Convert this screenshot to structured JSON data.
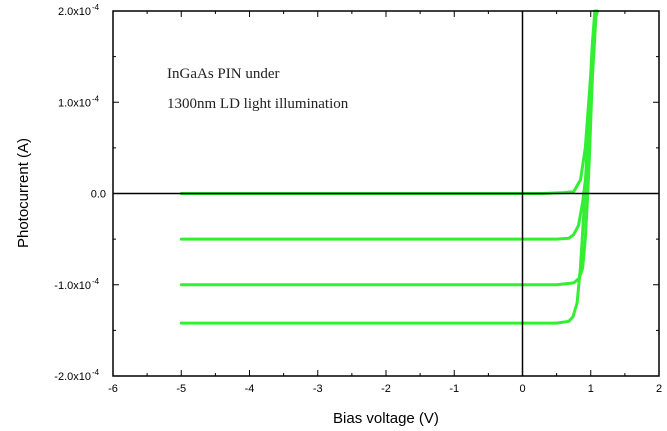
{
  "chart_data": {
    "type": "line",
    "title": "",
    "xlabel": "Bias voltage (V)",
    "ylabel": "Photocurrent (A)",
    "xlim": [
      -6,
      2
    ],
    "ylim": [
      -0.0002,
      0.0002
    ],
    "x_ticks": [
      -6,
      -5,
      -4,
      -3,
      -2,
      -1,
      0,
      1,
      2
    ],
    "x_tick_labels": [
      "-6",
      "-5",
      "-4",
      "-3",
      "-2",
      "-1",
      "0",
      "1",
      "2"
    ],
    "y_ticks": [
      -0.0002,
      -0.0001,
      0,
      0.0001,
      0.0002
    ],
    "y_tick_base": [
      "-2.0x10",
      "-1.0x10",
      "0.0",
      "1.0x10",
      "2.0x10"
    ],
    "y_tick_exp": [
      "-4",
      "-4",
      "",
      "-4",
      "-4"
    ],
    "grid": false,
    "legend": "none",
    "series_color": "#33ee33",
    "annotation": [
      "InGaAs PIN under",
      "1300nm LD light illumination"
    ],
    "series": [
      {
        "x": [
          -5,
          0,
          0.3,
          0.6,
          0.75,
          0.85,
          0.92,
          0.97,
          1.02,
          1.06,
          1.1
        ],
        "y": [
          0,
          0,
          0,
          1e-06,
          2e-06,
          1.5e-05,
          5e-05,
          0.0001,
          0.00015,
          0.00019,
          0.0002
        ]
      },
      {
        "x": [
          -5,
          0,
          0.5,
          0.68,
          0.75,
          0.82,
          0.88,
          0.93,
          0.97,
          1.01,
          1.05,
          1.08
        ],
        "y": [
          -5e-05,
          -5e-05,
          -5e-05,
          -4.9e-05,
          -4.5e-05,
          -3.5e-05,
          -1e-05,
          2e-05,
          6e-05,
          0.00011,
          0.00016,
          0.0002
        ]
      },
      {
        "x": [
          -5,
          0,
          0.5,
          0.75,
          0.83,
          0.88,
          0.92,
          0.95,
          0.98,
          1.01,
          1.04,
          1.07
        ],
        "y": [
          -0.0001,
          -0.0001,
          -0.0001,
          -9.8e-05,
          -9.3e-05,
          -8.2e-05,
          -5e-05,
          -1e-05,
          4e-05,
          0.0001,
          0.00016,
          0.0002
        ]
      },
      {
        "x": [
          -5,
          0,
          0.5,
          0.68,
          0.74,
          0.8,
          0.85,
          0.9,
          0.94,
          0.98,
          1.02,
          1.06
        ],
        "y": [
          -0.000142,
          -0.000142,
          -0.000142,
          -0.00014,
          -0.000135,
          -0.00012,
          -8e-05,
          -2e-05,
          4e-05,
          0.0001,
          0.00016,
          0.0002
        ]
      }
    ]
  }
}
